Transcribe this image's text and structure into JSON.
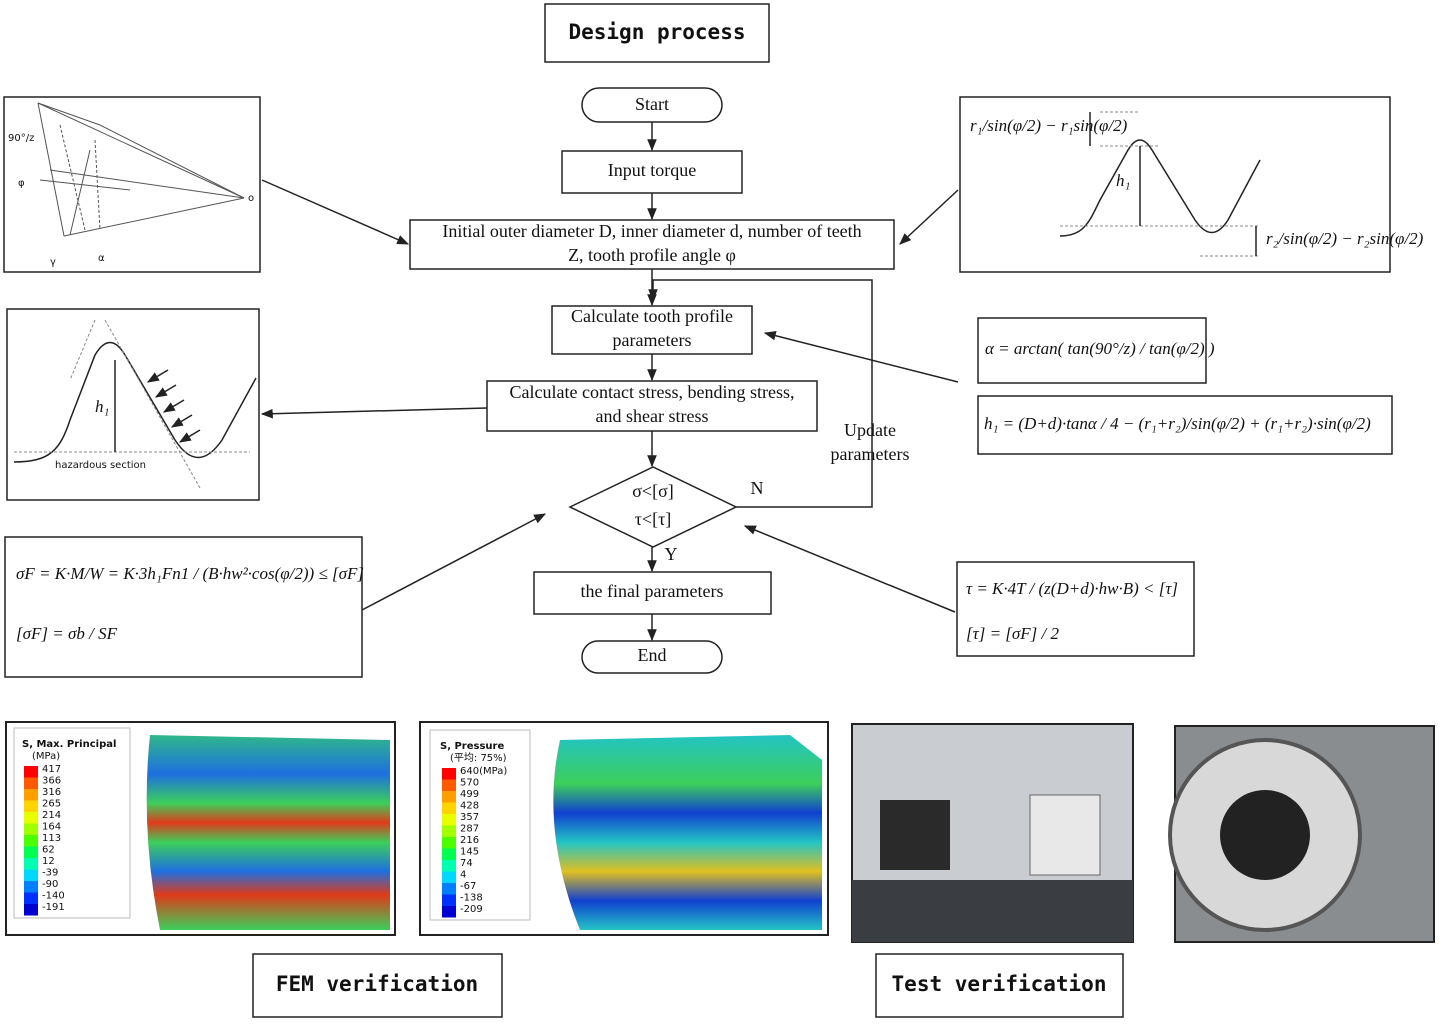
{
  "title": "Design process",
  "flow": {
    "start": "Start",
    "input": "Input torque",
    "initial": [
      "Initial outer diameter D, inner diameter d, number of teeth",
      "Z, tooth profile angle φ"
    ],
    "calc_profile": [
      "Calculate tooth profile",
      "parameters"
    ],
    "calc_stress": [
      "Calculate contact stress, bending stress,",
      "and shear stress"
    ],
    "condition": [
      "σ<[σ]",
      "τ<[τ]"
    ],
    "no": "N",
    "yes": "Y",
    "update": [
      "Update",
      "parameters"
    ],
    "final": "the final parameters",
    "end": "End"
  },
  "figures": {
    "cone_labels": [
      "90°/z",
      "φ",
      "γ",
      "α",
      "o"
    ],
    "tooth_top_labels": [
      "r₁/sin(φ/2) − r₁sin(φ/2)",
      "h₁",
      "r₂/sin(φ/2) − r₂sin(φ/2)"
    ],
    "tooth_left_labels": [
      "h₁",
      "hazardous section"
    ]
  },
  "formulas": {
    "alpha": "α = arctan( tan(90°/z) / tan(φ/2) )",
    "h": "h₁ = (D+d)·tanα / 4 − (r₁+r₂)/sin(φ/2) + (r₁+r₂)·sin(φ/2)",
    "bending": [
      "σF = K·M/W = K·3h₁Fn1 / (B·hw²·cos(φ/2)) ≤ [σF]",
      "[σF] = σb / SF"
    ],
    "shear": [
      "τ = K·4T / (z(D+d)·hw·B) < [τ]",
      "[τ] = [σF] / 2"
    ]
  },
  "fem": [
    {
      "title": "S, Max. Principal",
      "unit": "(MPa)",
      "levels": [
        417,
        366,
        316,
        265,
        214,
        164,
        113,
        62,
        12,
        -39,
        -90,
        -140,
        -191
      ]
    },
    {
      "title": "S, Pressure",
      "unit": "(平均: 75%)",
      "levels": [
        "640(MPa)",
        570,
        499,
        428,
        357,
        287,
        216,
        145,
        74,
        4,
        -67,
        -138,
        -209
      ]
    }
  ],
  "captions": {
    "fem": "FEM verification",
    "test": "Test verification"
  }
}
